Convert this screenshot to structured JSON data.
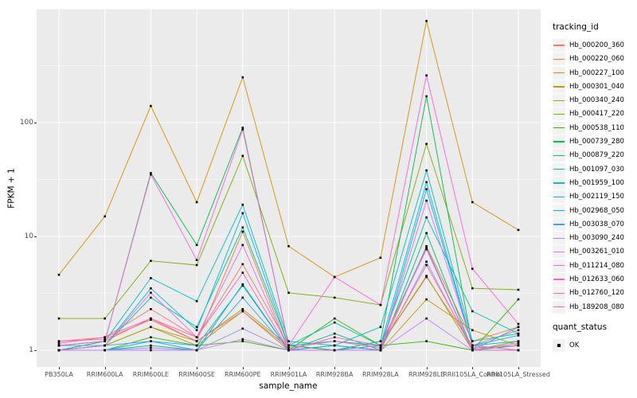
{
  "chart_data": {
    "type": "line",
    "xlabel": "sample_name",
    "ylabel": "FPKM + 1",
    "y_scale": "log10",
    "y_ticks": [
      "1",
      "10",
      "100"
    ],
    "ylim": [
      0.72,
      1100
    ],
    "grid": "white major and minor gridlines on grey panel",
    "panel_bg": "#EBEBEB",
    "point_color": "#000000",
    "legend_position": "right",
    "legend_title": "tracking_id",
    "quant_legend": {
      "title": "quant_status",
      "items": [
        {
          "label": "OK",
          "marker": "black-square"
        }
      ]
    },
    "categories": [
      "PB350LA",
      "RRIM600LA",
      "RRIM600LE",
      "RRIM600SE",
      "RRIM600PE",
      "RRIM901LA",
      "RRIM928BA",
      "RRIM928LA",
      "RRIM928LE",
      "RRII105LA_Control",
      "RRII105LA_Stressed"
    ],
    "series": [
      {
        "name": "Hb_000200_360",
        "color": "#F8766D",
        "values": [
          1.2,
          1.3,
          2.3,
          1.3,
          5.7,
          1.1,
          1.2,
          1.1,
          4.4,
          1.1,
          1.5
        ]
      },
      {
        "name": "Hb_000220_060",
        "color": "#EA8331",
        "values": [
          1.1,
          1.2,
          1.9,
          1.2,
          11,
          1.0,
          1.1,
          1.0,
          8.2,
          1.2,
          1.6
        ]
      },
      {
        "name": "Hb_000227_100",
        "color": "#D89000",
        "values": [
          4.6,
          15,
          140,
          20,
          250,
          8.2,
          4.4,
          6.5,
          780,
          20,
          11.4
        ]
      },
      {
        "name": "Hb_000301_040",
        "color": "#C09B00",
        "values": [
          1.0,
          1.1,
          1.6,
          1.1,
          2.2,
          1.0,
          1.1,
          1.0,
          2.8,
          1.5,
          1.1
        ]
      },
      {
        "name": "Hb_000340_240",
        "color": "#A3A500",
        "values": [
          1.0,
          1.1,
          1.6,
          1.2,
          2.3,
          1.1,
          1.0,
          1.1,
          4.5,
          1.0,
          1.2
        ]
      },
      {
        "name": "Hb_000417_220",
        "color": "#7CAE00",
        "values": [
          1.9,
          1.9,
          6.1,
          5.6,
          51,
          3.2,
          2.9,
          2.5,
          65,
          3.5,
          3.4
        ]
      },
      {
        "name": "Hb_000538_110",
        "color": "#39B600",
        "values": [
          1.0,
          1.0,
          1.3,
          1.1,
          1.2,
          1.0,
          1.9,
          1.1,
          1.2,
          1.0,
          2.8
        ]
      },
      {
        "name": "Hb_000739_280",
        "color": "#00BB4E",
        "values": [
          1.0,
          1.2,
          36,
          8.4,
          90,
          1.1,
          1.0,
          1.2,
          170,
          1.1,
          1.0
        ]
      },
      {
        "name": "Hb_000879_220",
        "color": "#00BF7D",
        "values": [
          1.0,
          1.0,
          1.1,
          1.0,
          3.8,
          1.0,
          1.4,
          1.0,
          10.7,
          1.0,
          1.1
        ]
      },
      {
        "name": "Hb_001097_030",
        "color": "#00C1A3",
        "values": [
          1.0,
          1.1,
          2.9,
          1.6,
          12,
          1.1,
          1.75,
          1.1,
          14.7,
          2.2,
          1.4
        ]
      },
      {
        "name": "Hb_001959_100",
        "color": "#00BFC4",
        "values": [
          1.1,
          1.2,
          4.3,
          2.7,
          19,
          1.2,
          1.1,
          1.6,
          38,
          1.2,
          1.4
        ]
      },
      {
        "name": "Hb_002119_150",
        "color": "#00BAE0",
        "values": [
          1.0,
          1.1,
          3.5,
          1.5,
          16,
          1.1,
          1.2,
          1.1,
          30,
          1.1,
          1.35
        ]
      },
      {
        "name": "Hb_002968_050",
        "color": "#00B0F6",
        "values": [
          1.0,
          1.0,
          1.2,
          1.1,
          3.7,
          1.0,
          1.1,
          1.0,
          26,
          1.1,
          1.2
        ]
      },
      {
        "name": "Hb_003038_070",
        "color": "#35A2FF",
        "values": [
          1.1,
          1.1,
          1.2,
          1.0,
          2.9,
          1.0,
          1.0,
          1.1,
          8.0,
          1.0,
          1.6
        ]
      },
      {
        "name": "Hb_003090_240",
        "color": "#9590FF",
        "values": [
          1.0,
          1.0,
          1.05,
          1.0,
          1.55,
          1.0,
          1.0,
          1.0,
          6.0,
          1.0,
          1.0
        ]
      },
      {
        "name": "Hb_003261_010",
        "color": "#C77CFF",
        "values": [
          1.0,
          1.0,
          1.0,
          1.0,
          1.25,
          1.0,
          1.0,
          1.0,
          1.9,
          1.0,
          1.15
        ]
      },
      {
        "name": "Hb_011214_080",
        "color": "#E76BF3",
        "values": [
          1.0,
          1.1,
          3.2,
          1.3,
          8.4,
          1.0,
          1.0,
          1.0,
          20.6,
          1.1,
          1.0
        ]
      },
      {
        "name": "Hb_012633_060",
        "color": "#FA62DB",
        "values": [
          1.1,
          1.2,
          35,
          6.2,
          87,
          1.1,
          4.4,
          2.5,
          260,
          5.2,
          1.7
        ]
      },
      {
        "name": "Hb_012760_120",
        "color": "#FF62BC",
        "values": [
          1.15,
          1.3,
          1.9,
          1.3,
          4.8,
          1.0,
          1.3,
          1.1,
          7.7,
          1.0,
          1.0
        ]
      },
      {
        "name": "Hb_189208_080",
        "color": "#FF6A98",
        "values": [
          1.2,
          1.25,
          1.85,
          1.2,
          2.2,
          1.05,
          1.2,
          1.05,
          5.6,
          1.05,
          1.1
        ]
      }
    ]
  }
}
